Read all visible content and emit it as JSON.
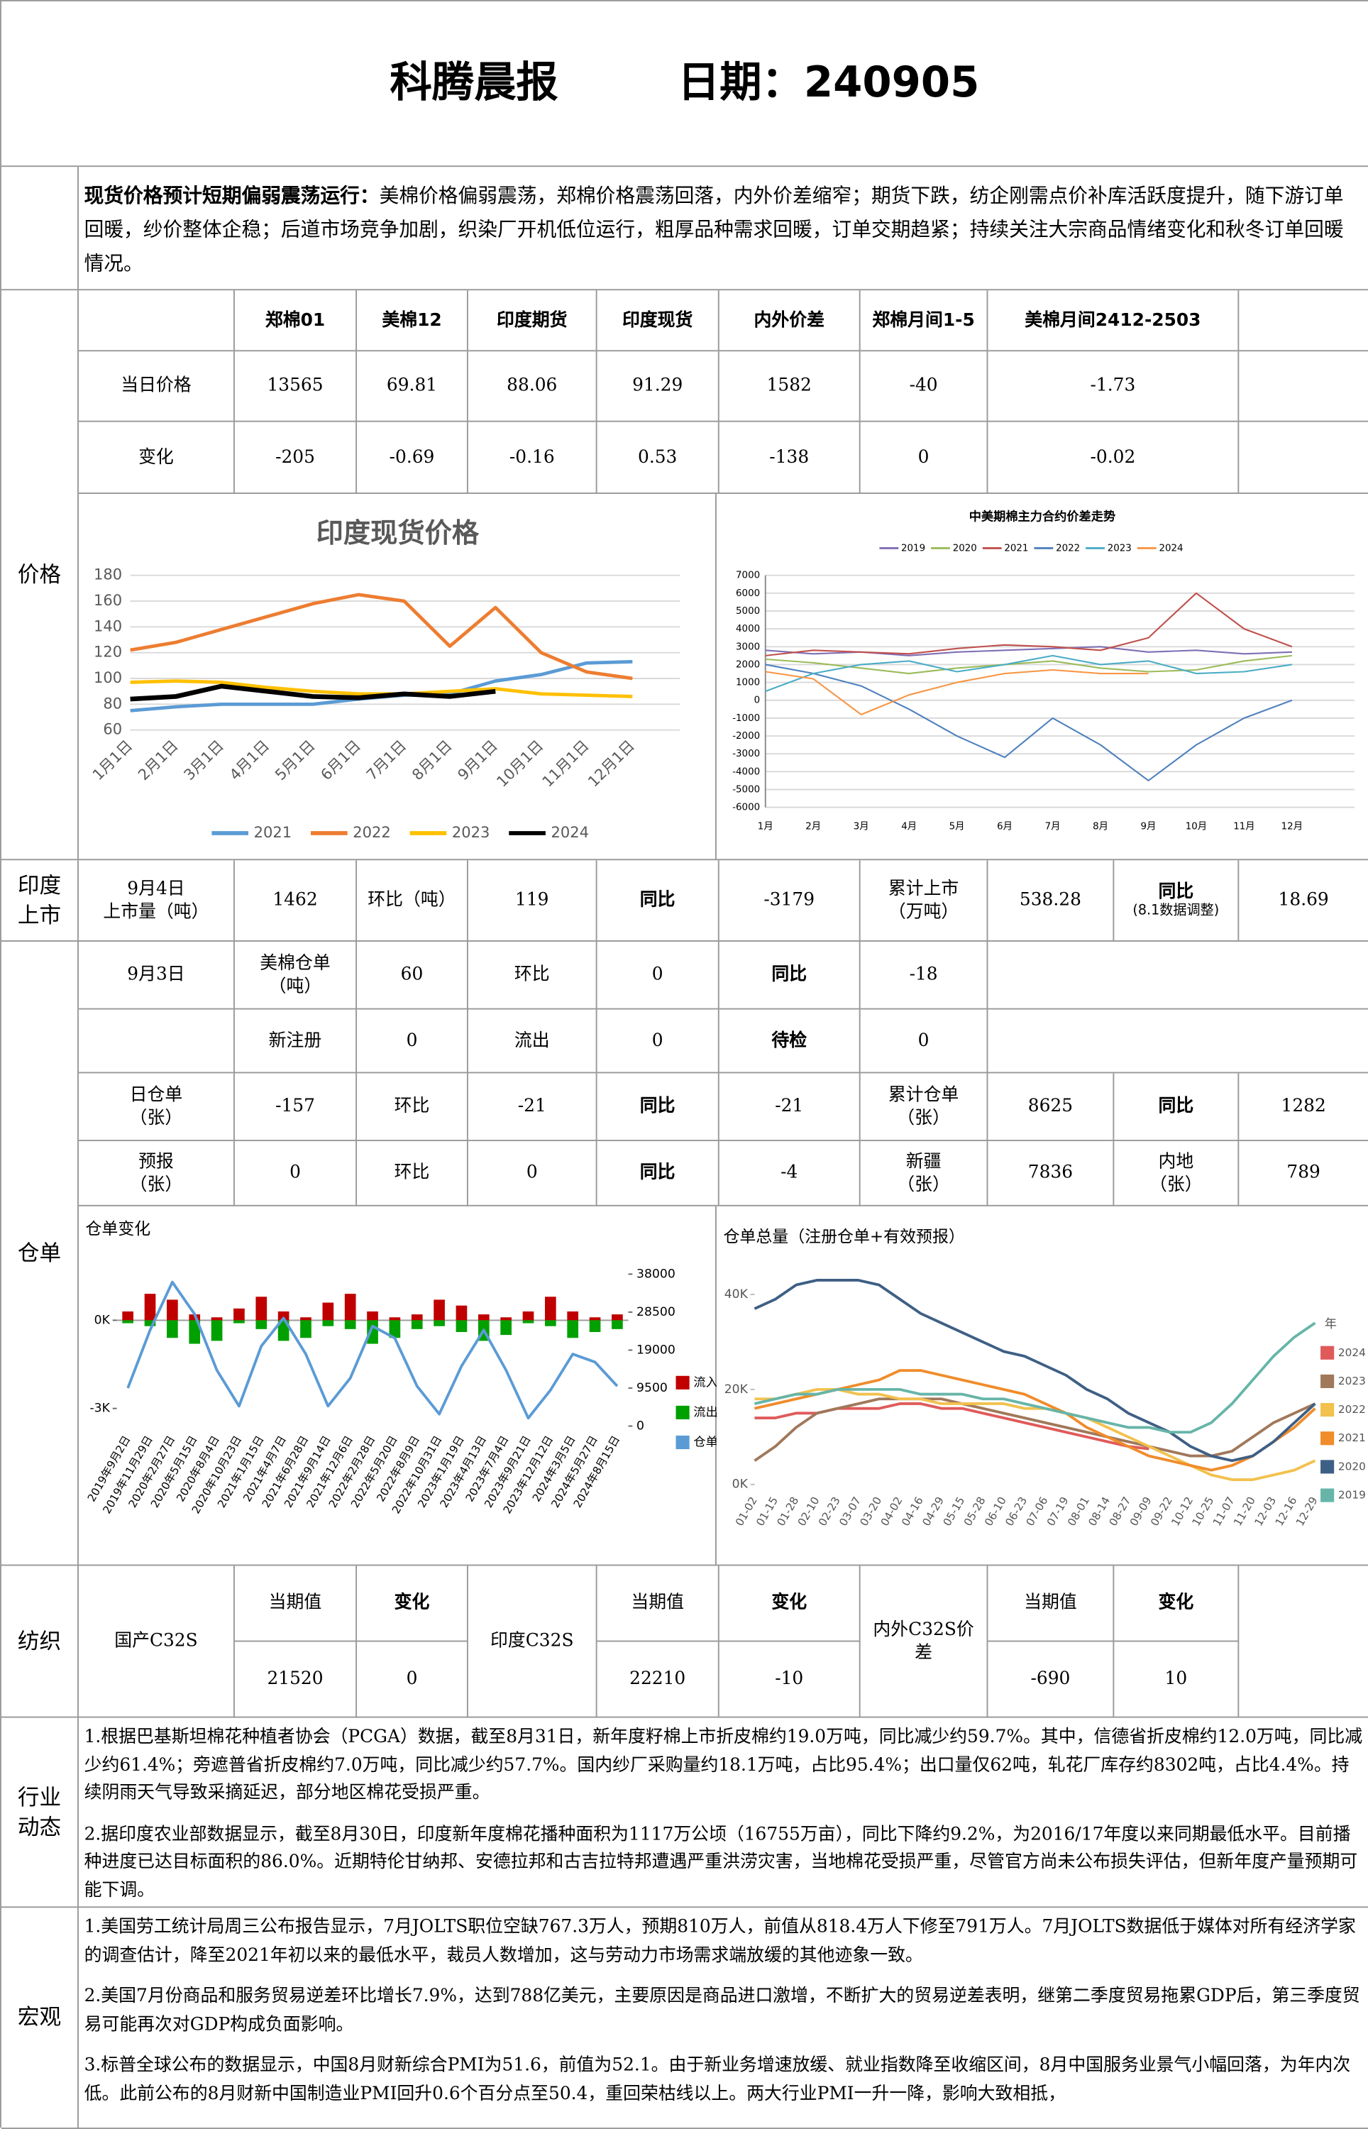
{
  "header": {
    "title": "科腾晨报",
    "date": "日期：240905"
  },
  "summary": {
    "lead": "现货价格预计短期偏弱震荡运行：",
    "text": "美棉价格偏弱震荡，郑棉价格震荡回落，内外价差缩窄；期货下跌，纺企刚需点价补库活跃度提升，随下游订单回暖，纱价整体企稳；后道市场竞争加剧，织染厂开机低位运行，粗厚品种需求回暖，订单交期趋紧；持续关注大宗商品情绪变化和秋冬订单回暖情况。"
  },
  "price": {
    "label": "价格",
    "headers": [
      "郑棉01",
      "美棉12",
      "印度期货",
      "印度现货",
      "内外价差",
      "郑棉月间1-5",
      "美棉月间2412-2503"
    ],
    "rows": [
      {
        "label": "当日价格",
        "values": [
          "13565",
          "69.81",
          "88.06",
          "91.29",
          "1582",
          "-40",
          "-1.73"
        ]
      },
      {
        "label": "变化",
        "values": [
          "-205",
          "-0.69",
          "-0.16",
          "0.53",
          "-138",
          "0",
          "-0.02"
        ]
      }
    ]
  },
  "india_listing": {
    "label": "印度上市",
    "cells": [
      "9月4日\n上市量（吨）",
      "1462",
      "环比（吨）",
      "119",
      "同比",
      "-3179",
      "累计上市\n（万吨）",
      "538.28",
      "同比",
      "18.69"
    ],
    "note": "(8.1数据调整)"
  },
  "warehouse": {
    "label": "仓单",
    "rows": [
      [
        "9月3日",
        "美棉仓单（吨）",
        "60",
        "环比",
        "0",
        "同比",
        "-18"
      ],
      [
        "新注册",
        "0",
        "流出",
        "0",
        "待检",
        "0"
      ],
      [
        "日仓单\n（张）",
        "-157",
        "环比",
        "-21",
        "同比",
        "-21",
        "累计仓单\n（张）",
        "8625",
        "同比",
        "1282"
      ],
      [
        "预报\n（张）",
        "0",
        "环比",
        "0",
        "同比",
        "-4",
        "新疆\n（张）",
        "7836",
        "内地\n（张）",
        "789"
      ]
    ]
  },
  "textile": {
    "label": "纺织",
    "groups": [
      {
        "name": "国产C32S",
        "current_label": "当期值",
        "current": "21520",
        "change_label": "变化",
        "change": "0"
      },
      {
        "name": "印度C32S",
        "current_label": "当期值",
        "current": "22210",
        "change_label": "变化",
        "change": "-10"
      },
      {
        "name": "内外C32S价差",
        "current_label": "当期值",
        "current": "-690",
        "change_label": "变化",
        "change": "10"
      }
    ]
  },
  "industry": {
    "label": "行业动态",
    "paragraphs": [
      "1.根据巴基斯坦棉花种植者协会（PCGA）数据，截至8月31日，新年度籽棉上市折皮棉约19.0万吨，同比减少约59.7%。其中，信德省折皮棉约12.0万吨，同比减少约61.4%；旁遮普省折皮棉约7.0万吨，同比减少约57.7%。国内纱厂采购量约18.1万吨，占比95.4%；出口量仅62吨，轧花厂库存约8302吨，占比4.4%。持续阴雨天气导致采摘延迟，部分地区棉花受损严重。",
      "2.据印度农业部数据显示，截至8月30日，印度新年度棉花播种面积为1117万公顷（16755万亩），同比下降约9.2%，为2016/17年度以来同期最低水平。目前播种进度已达目标面积的86.0%。近期特伦甘纳邦、安德拉邦和古吉拉特邦遭遇严重洪涝灾害，当地棉花受损严重，尽管官方尚未公布损失评估，但新年度产量预期可能下调。"
    ]
  },
  "macro": {
    "label": "宏观",
    "paragraphs": [
      "1.美国劳工统计局周三公布报告显示，7月JOLTS职位空缺767.3万人，预期810万人，前值从818.4万人下修至791万人。7月JOLTS数据低于媒体对所有经济学家的调查估计，降至2021年初以来的最低水平，裁员人数增加，这与劳动力市场需求端放缓的其他迹象一致。",
      "2.美国7月份商品和服务贸易逆差环比增长7.9%，达到788亿美元，主要原因是商品进口激增，不断扩大的贸易逆差表明，继第二季度贸易拖累GDP后，第三季度贸易可能再次对GDP构成负面影响。",
      "3.标普全球公布的数据显示，中国8月财新综合PMI为51.6，前值为52.1。由于新业务增速放缓、就业指数降至收缩区间，8月中国服务业景气小幅回落，为年内次低。此前公布的8月财新中国制造业PMI回升0.6个百分点至50.4，重回荣枯线以上。两大行业PMI一升一降，影响大致相抵，"
    ]
  },
  "chart_data": [
    {
      "type": "line",
      "title": "印度现货价格",
      "categories": [
        "1月1日",
        "2月1日",
        "3月1日",
        "4月1日",
        "5月1日",
        "6月1日",
        "7月1日",
        "8月1日",
        "9月1日",
        "10月1日",
        "11月1日",
        "12月1日"
      ],
      "series": [
        {
          "name": "2021",
          "color": "#5b9bd5",
          "values": [
            75,
            78,
            80,
            80,
            80,
            84,
            87,
            88,
            98,
            103,
            112,
            113
          ]
        },
        {
          "name": "2022",
          "color": "#ed7d31",
          "values": [
            122,
            128,
            138,
            148,
            158,
            165,
            160,
            125,
            155,
            120,
            105,
            100
          ]
        },
        {
          "name": "2023",
          "color": "#ffc000",
          "values": [
            97,
            98,
            97,
            93,
            90,
            88,
            88,
            90,
            92,
            88,
            87,
            86
          ]
        },
        {
          "name": "2024",
          "color": "#000000",
          "values": [
            84,
            86,
            94,
            90,
            86,
            85,
            88,
            86,
            90,
            null,
            null,
            null
          ]
        }
      ],
      "ylim": [
        60,
        180
      ],
      "yticks": [
        60,
        80,
        100,
        120,
        140,
        160,
        180
      ],
      "grid": true
    },
    {
      "type": "line",
      "title": "中美期棉主力合约价差走势",
      "categories": [
        "1月",
        "2月",
        "3月",
        "4月",
        "5月",
        "6月",
        "7月",
        "8月",
        "9月",
        "10月",
        "11月",
        "12月"
      ],
      "series": [
        {
          "name": "2019",
          "color": "#7f6fb5",
          "values": [
            2800,
            2600,
            2700,
            2500,
            2700,
            2800,
            2900,
            3000,
            2700,
            2800,
            2600,
            2700
          ]
        },
        {
          "name": "2020",
          "color": "#9bbb59",
          "values": [
            2300,
            2100,
            1800,
            1500,
            1800,
            2000,
            2200,
            1800,
            1600,
            1700,
            2200,
            2500
          ]
        },
        {
          "name": "2021",
          "color": "#c0504d",
          "values": [
            2500,
            2800,
            2700,
            2600,
            2900,
            3100,
            3000,
            2800,
            3500,
            6000,
            4000,
            3000
          ]
        },
        {
          "name": "2022",
          "color": "#4f81bd",
          "values": [
            2000,
            1500,
            800,
            -500,
            -2000,
            -3200,
            -1000,
            -2500,
            -4500,
            -2500,
            -1000,
            0
          ]
        },
        {
          "name": "2023",
          "color": "#4bacc6",
          "values": [
            500,
            1500,
            2000,
            2200,
            1600,
            2000,
            2500,
            2000,
            2200,
            1500,
            1600,
            2000
          ]
        },
        {
          "name": "2024",
          "color": "#f79646",
          "values": [
            1600,
            1200,
            -800,
            300,
            1000,
            1500,
            1700,
            1500,
            1500,
            null,
            null,
            null
          ]
        }
      ],
      "ylim": [
        -6000,
        7000
      ],
      "yticks": [
        -6000,
        -5000,
        -4000,
        -3000,
        -2000,
        -1000,
        0,
        1000,
        2000,
        3000,
        4000,
        5000,
        6000,
        7000
      ],
      "grid": true
    },
    {
      "type": "combo",
      "title": "仓单变化",
      "categories": [
        "2019年9月2日",
        "2019年11月29日",
        "2020年2月27日",
        "2020年5月15日",
        "2020年8月4日",
        "2020年10月23日",
        "2021年1月15日",
        "2021年4月7日",
        "2021年6月28日",
        "2021年9月14日",
        "2021年12月6日",
        "2022年2月28日",
        "2022年5月20日",
        "2022年8月9日",
        "2022年10月31日",
        "2023年1月19日",
        "2023年4月13日",
        "2023年7月4日",
        "2023年9月21日",
        "2023年12月12日",
        "2024年3月5日",
        "2024年5月27日",
        "2024年8月15日"
      ],
      "series": [
        {
          "name": "流入",
          "color": "#c00000",
          "values": [
            300,
            900,
            700,
            200,
            100,
            400,
            800,
            300,
            100,
            600,
            900,
            300,
            100,
            200,
            700,
            500,
            200,
            100,
            300,
            800,
            300,
            100,
            200
          ]
        },
        {
          "name": "流出",
          "color": "#00a000",
          "values": [
            -100,
            -200,
            -600,
            -800,
            -700,
            -100,
            -300,
            -700,
            -600,
            -200,
            -300,
            -800,
            -600,
            -300,
            -200,
            -400,
            -700,
            -500,
            -100,
            -200,
            -600,
            -400,
            -300
          ]
        },
        {
          "name": "仓单",
          "color": "#5b9bd5",
          "axis": "y2",
          "values": [
            9500,
            24000,
            36000,
            28000,
            14000,
            5000,
            20000,
            27000,
            18000,
            5000,
            12000,
            25000,
            22000,
            10000,
            3000,
            15000,
            24000,
            14000,
            2000,
            9000,
            18000,
            16000,
            10000
          ]
        }
      ],
      "ylim": [
        -3600,
        1570
      ],
      "yticks": [
        {
          "value": 0,
          "label": "0K"
        },
        {
          "value": -3000,
          "label": "-3K"
        }
      ],
      "y2lim": [
        0,
        38000
      ],
      "y2ticks": [
        0,
        9500,
        19000,
        28500,
        38000
      ],
      "grid": false
    },
    {
      "type": "line",
      "title": "仓单总量（注册仓单+有效预报）",
      "categories": [
        "01-02",
        "01-15",
        "01-28",
        "02-10",
        "02-23",
        "03-07",
        "03-20",
        "04-02",
        "04-16",
        "04-29",
        "05-15",
        "05-28",
        "06-10",
        "06-23",
        "07-06",
        "07-19",
        "08-01",
        "08-14",
        "08-27",
        "09-09",
        "09-22",
        "10-12",
        "10-25",
        "11-07",
        "11-20",
        "12-03",
        "12-16",
        "12-29"
      ],
      "legend_title": "年",
      "series": [
        {
          "name": "2024",
          "color": "#e05a5a",
          "values": [
            14000,
            14000,
            15000,
            15000,
            16000,
            16000,
            16000,
            17000,
            17000,
            16000,
            16000,
            15000,
            14000,
            13000,
            12000,
            11000,
            10000,
            9000,
            8000,
            7500,
            null,
            null,
            null,
            null,
            null,
            null,
            null,
            null
          ]
        },
        {
          "name": "2023",
          "color": "#a0785a",
          "values": [
            5000,
            8000,
            12000,
            15000,
            16000,
            17000,
            18000,
            18000,
            18000,
            18000,
            17000,
            16000,
            15000,
            14000,
            13000,
            12000,
            11000,
            10000,
            9000,
            8000,
            7000,
            6000,
            6000,
            7000,
            10000,
            13000,
            15000,
            17000
          ]
        },
        {
          "name": "2022",
          "color": "#f2c14e",
          "values": [
            18000,
            18000,
            19000,
            20000,
            20000,
            19000,
            19000,
            18000,
            18000,
            17000,
            17000,
            17000,
            17000,
            16000,
            16000,
            15000,
            14000,
            12000,
            10000,
            8000,
            6000,
            4000,
            2000,
            1000,
            1000,
            2000,
            3000,
            5000
          ]
        },
        {
          "name": "2021",
          "color": "#f08c2a",
          "values": [
            16000,
            17000,
            18000,
            19000,
            20000,
            21000,
            22000,
            24000,
            24000,
            23000,
            22000,
            21000,
            20000,
            19000,
            17000,
            15000,
            12000,
            10000,
            8000,
            6000,
            5000,
            4000,
            3000,
            4000,
            6000,
            9000,
            12000,
            16000
          ]
        },
        {
          "name": "2020",
          "color": "#3e5f85",
          "values": [
            37000,
            39000,
            42000,
            43000,
            43000,
            43000,
            42000,
            39000,
            36000,
            34000,
            32000,
            30000,
            28000,
            27000,
            25000,
            23000,
            20000,
            18000,
            15000,
            13000,
            11000,
            8000,
            6000,
            5000,
            6000,
            9000,
            13000,
            17000
          ]
        },
        {
          "name": "2019",
          "color": "#66b5a8",
          "values": [
            17000,
            18000,
            19000,
            19000,
            20000,
            20000,
            20000,
            20000,
            19000,
            19000,
            19000,
            18000,
            18000,
            17000,
            16000,
            15000,
            14000,
            13000,
            12000,
            12000,
            11000,
            11000,
            13000,
            17000,
            22000,
            27000,
            31000,
            34000
          ]
        }
      ],
      "ylim": [
        0,
        46000
      ],
      "yticks": [
        {
          "value": 0,
          "label": "0K"
        },
        {
          "value": 20000,
          "label": "20K"
        },
        {
          "value": 40000,
          "label": "40K"
        }
      ],
      "grid": false
    }
  ]
}
